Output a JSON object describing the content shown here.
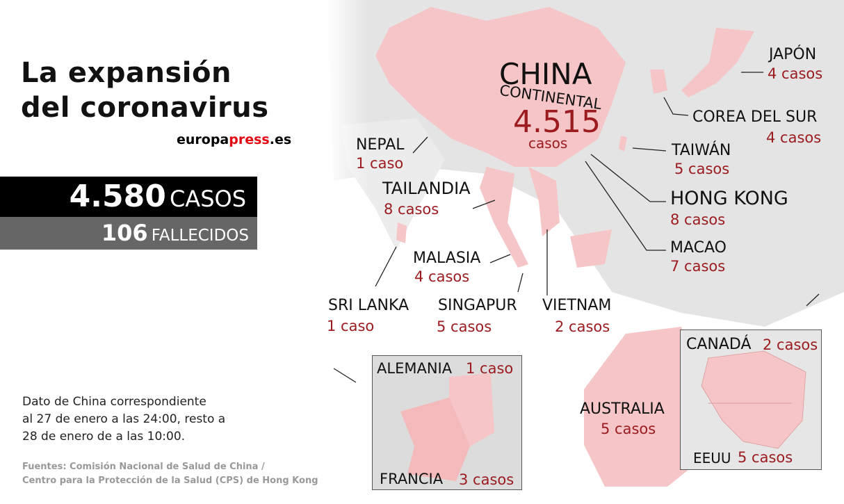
{
  "title": {
    "line1": "La expansión",
    "line2": "del coronavirus",
    "brand_a": "europa",
    "brand_b": "press",
    "brand_c": ".es"
  },
  "totals": {
    "cases_num": "4.580",
    "cases_label": "CASOS",
    "deaths_num": "106",
    "deaths_label": "FALLECIDOS"
  },
  "note": {
    "line1": "Dato de China correspondiente",
    "line2": "al 27 de enero a las 24:00, resto a",
    "line3": "28 de enero de a las 10:00."
  },
  "sources": {
    "line1": "Fuentes: Comisión Nacional de Salud de China /",
    "line2": "Centro para la Protección de la Salud (CPS) de Hong Kong"
  },
  "china": {
    "name": "CHINA",
    "sub": "CONTINENTAL",
    "count": "4.515",
    "unit": "casos"
  },
  "countries": [
    {
      "name": "JAPÓN",
      "cases": "4 casos"
    },
    {
      "name": "COREA DEL SUR",
      "cases": "4 casos"
    },
    {
      "name": "TAIWÁN",
      "cases": "5 casos"
    },
    {
      "name": "HONG KONG",
      "cases": "8 casos"
    },
    {
      "name": "MACAO",
      "cases": "7 casos"
    },
    {
      "name": "NEPAL",
      "cases": "1 caso"
    },
    {
      "name": "TAILANDIA",
      "cases": "8 casos"
    },
    {
      "name": "MALASIA",
      "cases": "4 casos"
    },
    {
      "name": "SRI LANKA",
      "cases": "1 caso"
    },
    {
      "name": "SINGAPUR",
      "cases": "5 casos"
    },
    {
      "name": "VIETNAM",
      "cases": "2 casos"
    },
    {
      "name": "AUSTRALIA",
      "cases": "5 casos"
    },
    {
      "name": "CANADÁ",
      "cases": "2 casos"
    },
    {
      "name": "EEUU",
      "cases": "5 casos"
    },
    {
      "name": "ALEMANIA",
      "cases": "1 caso"
    },
    {
      "name": "FRANCIA",
      "cases": "3 casos"
    }
  ],
  "colors": {
    "affected": "#f5c5c7",
    "land": "#e2e2e2",
    "count_text": "#9b1b1f",
    "brand_red": "#e30613",
    "cases_bar": "#000000",
    "deaths_bar": "#666666"
  }
}
